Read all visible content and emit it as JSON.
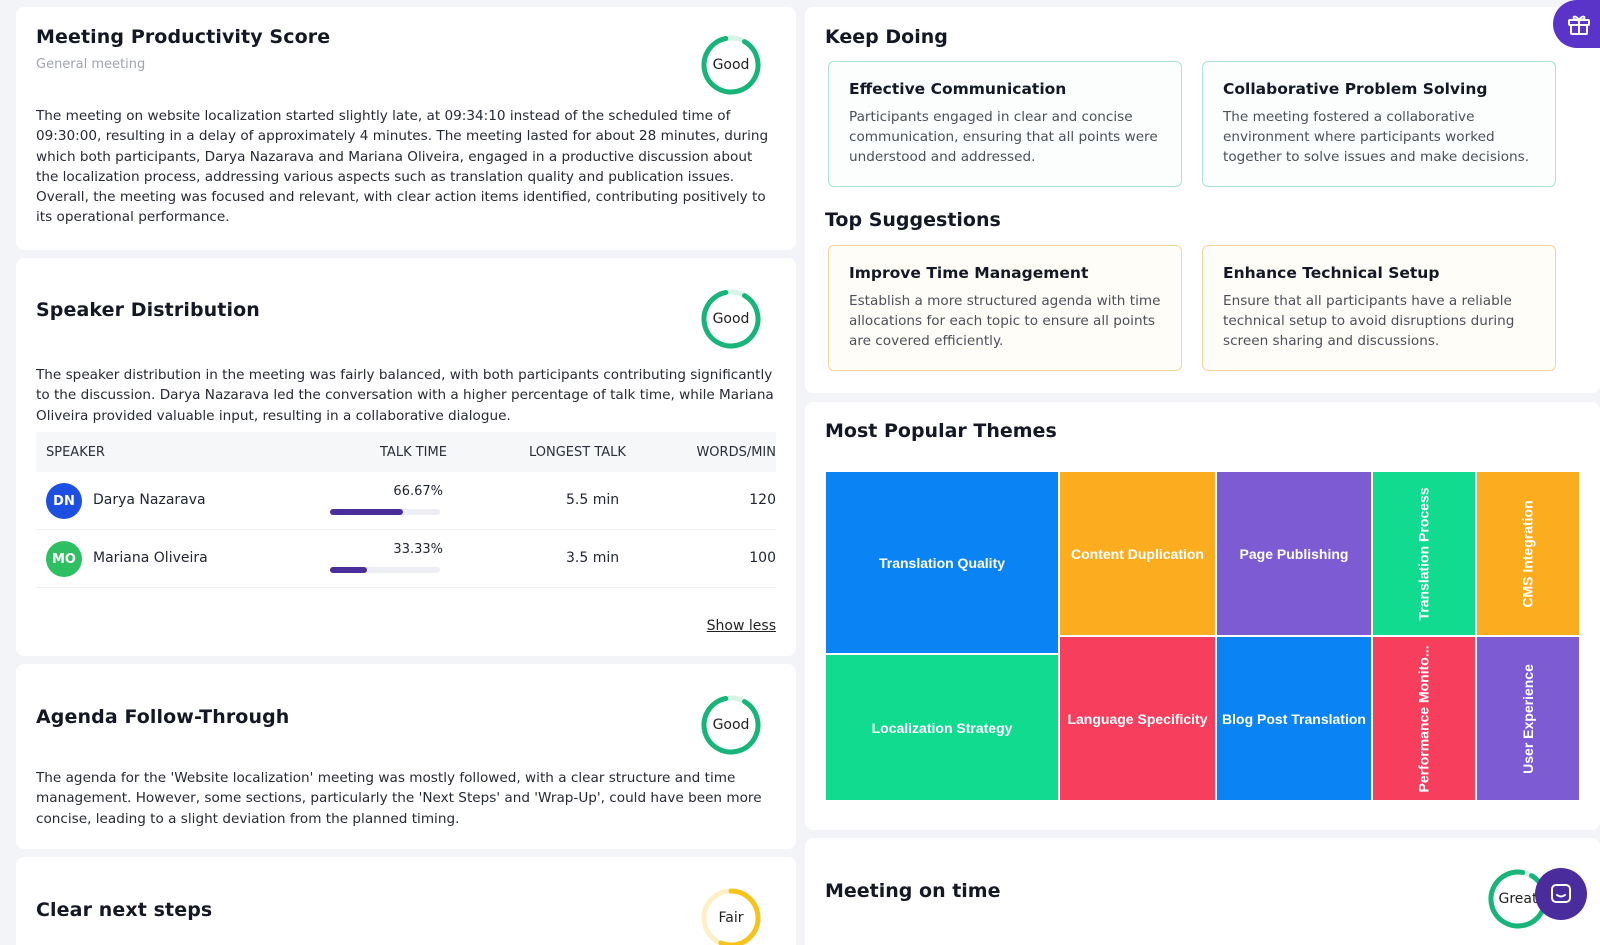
{
  "productivity": {
    "title": "Meeting Productivity Score",
    "subtitle": "General meeting",
    "rating": "Good",
    "text": "The meeting on website localization started slightly late, at 09:34:10 instead of the scheduled time of 09:30:00, resulting in a delay of approximately 4 minutes. The meeting lasted for about 28 minutes, during which both participants, Darya Nazarava and Mariana Oliveira, engaged in a productive discussion about the localization process, addressing various aspects such as translation quality and publication issues. Overall, the meeting was focused and relevant, with clear action items identified, contributing positively to its operational performance."
  },
  "speakers": {
    "title": "Speaker Distribution",
    "rating": "Good",
    "text": "The speaker distribution in the meeting was fairly balanced, with both participants contributing significantly to the discussion. Darya Nazarava led the conversation with a higher percentage of talk time, while Mariana Oliveira provided valuable input, resulting in a collaborative dialogue.",
    "columns": [
      "SPEAKER",
      "TALK TIME",
      "LONGEST TALK",
      "WORDS/MIN"
    ],
    "rows": [
      {
        "initials": "DN",
        "name": "Darya Nazarava",
        "talk_time": "66.67%",
        "talk_fraction": 0.6667,
        "longest": "5.5 min",
        "wpm": "120",
        "color": "#1d4fe0"
      },
      {
        "initials": "MO",
        "name": "Mariana Oliveira",
        "talk_time": "33.33%",
        "talk_fraction": 0.3333,
        "longest": "3.5 min",
        "wpm": "100",
        "color": "#2fbf63"
      }
    ],
    "show_less": "Show less"
  },
  "agenda": {
    "title": "Agenda Follow-Through",
    "rating": "Good",
    "text": "The agenda for the 'Website localization' meeting was mostly followed, with a clear structure and time management. However, some sections, particularly the 'Next Steps' and 'Wrap-Up', could have been more concise, leading to a slight deviation from the planned timing."
  },
  "next_steps": {
    "title": "Clear next steps",
    "rating": "Fair"
  },
  "keep_doing": {
    "title": "Keep Doing",
    "items": [
      {
        "title": "Effective Communication",
        "text": "Participants engaged in clear and concise communication, ensuring that all points were understood and addressed."
      },
      {
        "title": "Collaborative Problem Solving",
        "text": "The meeting fostered a collaborative environment where participants worked together to solve issues and make decisions."
      }
    ]
  },
  "suggestions": {
    "title": "Top Suggestions",
    "items": [
      {
        "title": "Improve Time Management",
        "text": "Establish a more structured agenda with time allocations for each topic to ensure all points are covered efficiently."
      },
      {
        "title": "Enhance Technical Setup",
        "text": "Ensure that all participants have a reliable technical setup to avoid disruptions during screen sharing and discussions."
      }
    ]
  },
  "themes": {
    "title": "Most Popular Themes",
    "tiles": [
      {
        "label": "Translation Quality",
        "color": "#0a84f5"
      },
      {
        "label": "Content Duplication",
        "color": "#fbac1f"
      },
      {
        "label": "Page Publishing",
        "color": "#7c5bd3"
      },
      {
        "label": "Translation Process",
        "color": "#10db8f"
      },
      {
        "label": "CMS Integration",
        "color": "#fbac1f"
      },
      {
        "label": "Localization Strategy",
        "color": "#10db8f"
      },
      {
        "label": "Language Specificity",
        "color": "#f73e5d"
      },
      {
        "label": "Blog Post Translation",
        "color": "#0a84f5"
      },
      {
        "label": "Performance Monito...",
        "color": "#f73e5d"
      },
      {
        "label": "User Experience",
        "color": "#7c5bd3"
      }
    ]
  },
  "on_time": {
    "title": "Meeting on time",
    "rating": "Great"
  },
  "icons": {
    "gift": "gift-icon",
    "chat": "chat-icon"
  },
  "colors": {
    "good_ring": "#17b57a",
    "fair_ring": "#f8c21c",
    "accent": "#5a33c9"
  }
}
